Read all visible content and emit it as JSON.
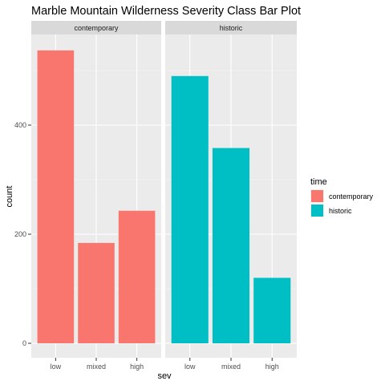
{
  "chart_data": {
    "type": "bar",
    "title": "Marble Mountain Wilderness Severity Class Bar Plot",
    "xlabel": "sev",
    "ylabel": "count",
    "categories": [
      "low",
      "mixed",
      "high"
    ],
    "ylim": [
      0,
      560
    ],
    "yticks": [
      0,
      200,
      400
    ],
    "grid": true,
    "facet_by": "time",
    "panels": [
      {
        "name": "contemporary",
        "values": [
          537,
          184,
          243
        ]
      },
      {
        "name": "historic",
        "values": [
          490,
          358,
          120
        ]
      }
    ],
    "legend": {
      "title": "time",
      "position": "right",
      "entries": [
        "contemporary",
        "historic"
      ]
    }
  },
  "colors": {
    "contemporary": "#F8766D",
    "historic": "#00BFC4",
    "panel_background": "#EBEBEB",
    "strip_background": "#D9D9D9",
    "grid_major": "#FFFFFF",
    "grid_minor": "#F5F5F5"
  }
}
